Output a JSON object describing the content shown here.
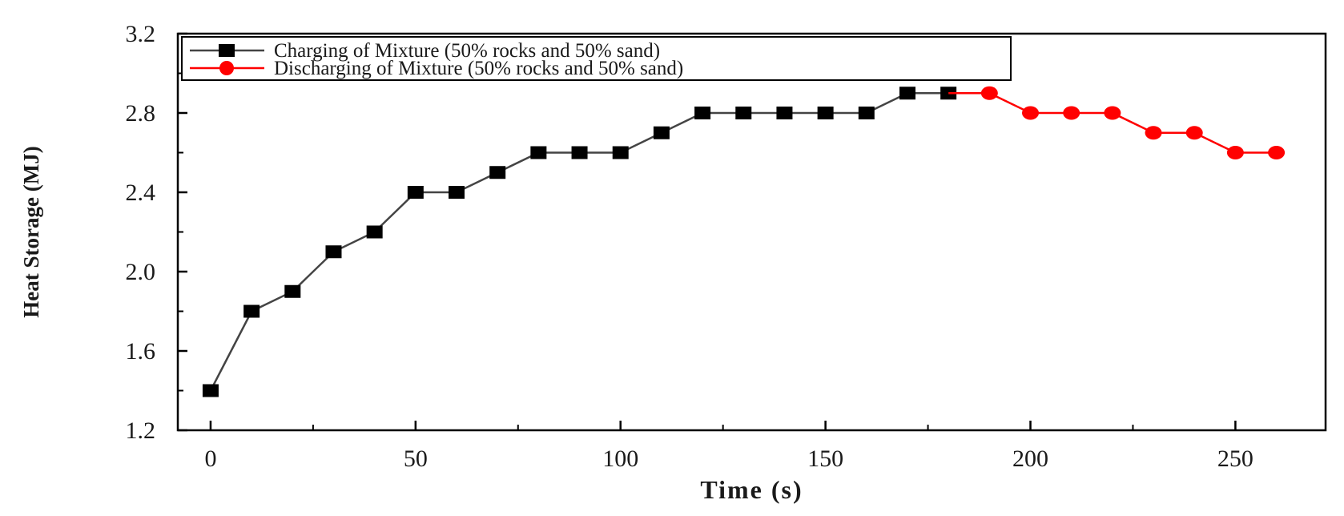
{
  "chart_data": {
    "type": "line",
    "title": "",
    "xlabel": "Time (s)",
    "ylabel": "Heat Storage (MJ)",
    "xlim": [
      -8,
      272
    ],
    "ylim": [
      1.2,
      3.2
    ],
    "x_ticks": [
      0,
      50,
      100,
      150,
      200,
      250
    ],
    "x_tick_labels": [
      "0",
      "50",
      "100",
      "150",
      "200",
      "250"
    ],
    "y_ticks": [
      1.2,
      1.6,
      2.0,
      2.4,
      2.8,
      3.2
    ],
    "y_tick_labels": [
      "1.2",
      "1.6",
      "2.0",
      "2.4",
      "2.8",
      "3.2"
    ],
    "grid": false,
    "legend_position": "top-left",
    "series": [
      {
        "name": "Charging of Mixture (50% rocks and 50% sand)",
        "color": "#000000",
        "line_color": "#444444",
        "marker": "square",
        "x": [
          0,
          10,
          20,
          30,
          40,
          50,
          60,
          70,
          80,
          90,
          100,
          110,
          120,
          130,
          140,
          150,
          160,
          170,
          180
        ],
        "y": [
          1.4,
          1.8,
          1.9,
          2.1,
          2.2,
          2.4,
          2.4,
          2.5,
          2.6,
          2.6,
          2.6,
          2.7,
          2.8,
          2.8,
          2.8,
          2.8,
          2.8,
          2.9,
          2.9
        ]
      },
      {
        "name": "Discharging of Mixture (50% rocks and 50% sand)",
        "color": "#ff0000",
        "line_color": "#ff0000",
        "marker": "circle",
        "x": [
          180,
          190,
          200,
          210,
          220,
          230,
          240,
          250,
          260
        ],
        "y": [
          2.9,
          2.9,
          2.8,
          2.8,
          2.8,
          2.7,
          2.7,
          2.6,
          2.6
        ]
      }
    ]
  }
}
